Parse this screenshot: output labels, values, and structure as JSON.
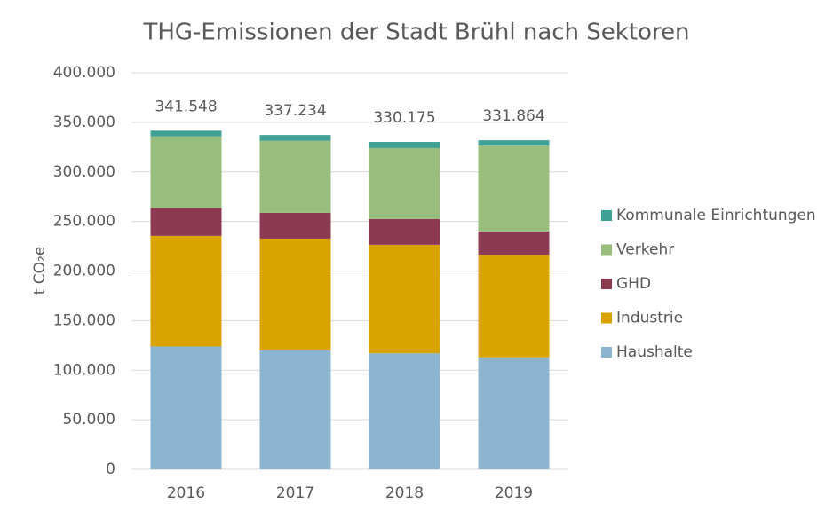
{
  "chart_data": {
    "type": "stacked_bar",
    "title": "THG-Emissionen der Stadt Brühl nach Sektoren",
    "y_label": "t CO₂e",
    "categories": [
      "2016",
      "2017",
      "2018",
      "2019"
    ],
    "series": [
      {
        "name": "Haushalte",
        "color": "#8db4cf",
        "values": [
          124000,
          120000,
          117000,
          113000
        ]
      },
      {
        "name": "Industrie",
        "color": "#d9a300",
        "values": [
          111500,
          112700,
          109500,
          103500
        ]
      },
      {
        "name": "GHD",
        "color": "#8b3a52",
        "values": [
          28000,
          26000,
          26000,
          23500
        ]
      },
      {
        "name": "Verkehr",
        "color": "#98bd7d",
        "values": [
          72500,
          72600,
          71500,
          86500
        ]
      },
      {
        "name": "Kommunale Einrichtungen",
        "color": "#3fa196",
        "values": [
          5548,
          5934,
          6175,
          5364
        ]
      }
    ],
    "totals": {
      "values": [
        341548,
        337234,
        330175,
        331864
      ],
      "value_labels": [
        "341.548",
        "337.234",
        "330.175",
        "331.864"
      ]
    },
    "ylim": [
      0,
      400000
    ],
    "yticks": [
      0,
      {
        "value": 50000,
        "label": "50.000"
      },
      {
        "value": 100000,
        "label": "100.000"
      },
      {
        "value": 150000,
        "label": "150.000"
      },
      {
        "value": 200000,
        "label": "200.000"
      },
      {
        "value": 250000,
        "label": "250.000"
      },
      {
        "value": 300000,
        "label": "300.000"
      },
      {
        "value": 350000,
        "label": "350.000"
      },
      {
        "value": 400000,
        "label": "400.000"
      }
    ],
    "grid": true,
    "legend": "right"
  }
}
